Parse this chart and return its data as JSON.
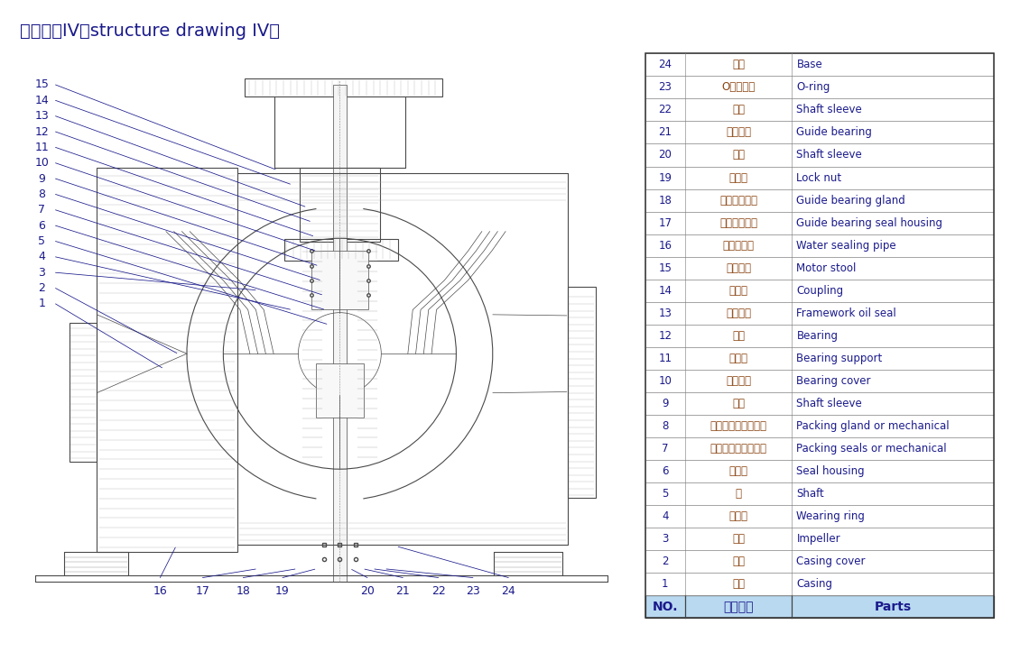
{
  "title": "结构形式IV（structure drawing IV）",
  "title_color": "#1a1a8c",
  "title_fontsize": 14,
  "bg_color": "#ffffff",
  "table_header": [
    "NO.",
    "零件名称",
    "Parts"
  ],
  "table_header_bg": "#b8d9f0",
  "table_header_fontsize": 10,
  "table_data": [
    [
      "24",
      "底座",
      "Base"
    ],
    [
      "23",
      "O型密封圈",
      "O-ring"
    ],
    [
      "22",
      "轴套",
      "Shaft sleeve"
    ],
    [
      "21",
      "水导轴承",
      "Guide bearing"
    ],
    [
      "20",
      "轴套",
      "Shaft sleeve"
    ],
    [
      "19",
      "圆螺母",
      "Lock nut"
    ],
    [
      "18",
      "水导轴承压盖",
      "Guide bearing gland"
    ],
    [
      "17",
      "导轴承密封体",
      "Guide bearing seal housing"
    ],
    [
      "16",
      "水封管部件",
      "Water sealing pipe"
    ],
    [
      "15",
      "电机支座",
      "Motor stool"
    ],
    [
      "14",
      "联轴器",
      "Coupling"
    ],
    [
      "13",
      "骨架油封",
      "Framework oil seal"
    ],
    [
      "12",
      "轴承",
      "Bearing"
    ],
    [
      "11",
      "轴承体",
      "Bearing support"
    ],
    [
      "10",
      "轴承压盖",
      "Bearing cover"
    ],
    [
      "9",
      "轴套",
      "Shaft sleeve"
    ],
    [
      "8",
      "机封压盖或填料压盖",
      "Packing gland or mechanical"
    ],
    [
      "7",
      "机械密封或填料密封",
      "Packing seals or mechanical"
    ],
    [
      "6",
      "密封体",
      "Seal housing"
    ],
    [
      "5",
      "轴",
      "Shaft"
    ],
    [
      "4",
      "密封环",
      "Wearing ring"
    ],
    [
      "3",
      "叶轮",
      "Impeller"
    ],
    [
      "2",
      "泵盖",
      "Casing cover"
    ],
    [
      "1",
      "泵体",
      "Casing"
    ]
  ],
  "table_fontsize": 8.5,
  "table_no_color": "#1a1a8c",
  "table_cn_color": "#8b4513",
  "table_en_color": "#1a1a8c",
  "label_color": "#1a1a8c",
  "label_fontsize": 9
}
